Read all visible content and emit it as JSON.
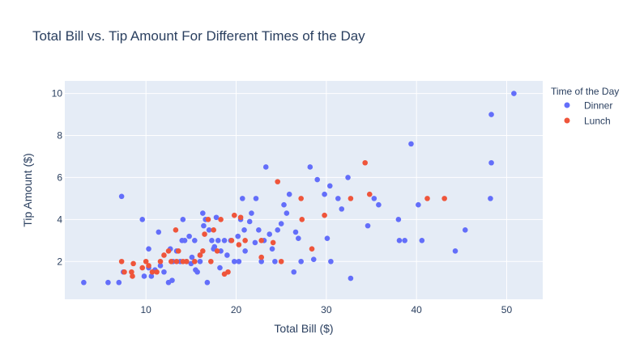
{
  "chart_data": {
    "type": "scatter",
    "title": "Total Bill vs. Tip Amount For Different Times of the Day",
    "xlabel": "Total Bill ($)",
    "ylabel": "Tip Amount ($)",
    "xlim": [
      1,
      54
    ],
    "ylim": [
      0.2,
      10.6
    ],
    "xticks": [
      10,
      20,
      30,
      40,
      50
    ],
    "yticks": [
      2,
      4,
      6,
      8,
      10
    ],
    "grid": true,
    "legend": {
      "title": "Time of the Day",
      "placement": "top-right"
    },
    "colors": {
      "Dinner": "#636efa",
      "Lunch": "#ef553b",
      "plot_bg": "#e5ecf6",
      "grid": "#ffffff"
    },
    "series": [
      {
        "name": "Dinner",
        "points": [
          [
            3.1,
            1.0
          ],
          [
            5.8,
            1.0
          ],
          [
            7.0,
            1.0
          ],
          [
            7.3,
            5.1
          ],
          [
            7.5,
            1.5
          ],
          [
            9.6,
            4.0
          ],
          [
            9.8,
            1.3
          ],
          [
            10.3,
            1.7
          ],
          [
            10.3,
            2.6
          ],
          [
            10.6,
            1.3
          ],
          [
            11.0,
            1.6
          ],
          [
            11.4,
            3.4
          ],
          [
            11.6,
            1.8
          ],
          [
            12.0,
            1.5
          ],
          [
            12.5,
            1.0
          ],
          [
            12.9,
            1.1
          ],
          [
            13.0,
            2.0
          ],
          [
            13.4,
            2.5
          ],
          [
            13.8,
            2.0
          ],
          [
            14.1,
            4.0
          ],
          [
            14.3,
            3.0
          ],
          [
            14.5,
            2.0
          ],
          [
            14.8,
            3.2
          ],
          [
            15.0,
            1.9
          ],
          [
            15.4,
            3.0
          ],
          [
            15.5,
            1.6
          ],
          [
            15.7,
            1.5
          ],
          [
            16.0,
            2.0
          ],
          [
            16.3,
            4.3
          ],
          [
            16.4,
            3.7
          ],
          [
            16.6,
            4.0
          ],
          [
            16.8,
            1.0
          ],
          [
            17.0,
            3.5
          ],
          [
            17.3,
            3.0
          ],
          [
            17.5,
            2.6
          ],
          [
            17.8,
            4.1
          ],
          [
            18.0,
            3.0
          ],
          [
            18.3,
            2.5
          ],
          [
            18.7,
            3.0
          ],
          [
            19.0,
            2.3
          ],
          [
            19.4,
            3.0
          ],
          [
            19.8,
            2.0
          ],
          [
            20.2,
            3.2
          ],
          [
            20.3,
            2.0
          ],
          [
            20.7,
            5.0
          ],
          [
            20.9,
            3.5
          ],
          [
            21.0,
            2.5
          ],
          [
            21.5,
            3.9
          ],
          [
            21.7,
            4.3
          ],
          [
            22.1,
            2.9
          ],
          [
            22.2,
            5.0
          ],
          [
            22.5,
            3.5
          ],
          [
            22.8,
            2.0
          ],
          [
            23.1,
            3.0
          ],
          [
            23.3,
            6.5
          ],
          [
            23.7,
            3.3
          ],
          [
            24.0,
            2.6
          ],
          [
            24.3,
            2.0
          ],
          [
            24.6,
            3.5
          ],
          [
            25.0,
            3.8
          ],
          [
            25.3,
            4.7
          ],
          [
            25.6,
            4.3
          ],
          [
            25.9,
            5.2
          ],
          [
            26.4,
            1.5
          ],
          [
            26.6,
            3.4
          ],
          [
            26.9,
            3.1
          ],
          [
            27.2,
            2.0
          ],
          [
            28.2,
            6.5
          ],
          [
            28.6,
            2.1
          ],
          [
            29.0,
            5.9
          ],
          [
            29.8,
            5.2
          ],
          [
            30.1,
            3.1
          ],
          [
            30.4,
            5.6
          ],
          [
            30.5,
            2.0
          ],
          [
            31.3,
            5.0
          ],
          [
            31.7,
            4.5
          ],
          [
            32.4,
            6.0
          ],
          [
            32.7,
            1.2
          ],
          [
            34.6,
            3.7
          ],
          [
            35.3,
            5.0
          ],
          [
            35.8,
            4.7
          ],
          [
            38.0,
            4.0
          ],
          [
            38.1,
            3.0
          ],
          [
            38.7,
            3.0
          ],
          [
            39.4,
            7.6
          ],
          [
            40.2,
            4.7
          ],
          [
            40.6,
            3.0
          ],
          [
            44.3,
            2.5
          ],
          [
            45.4,
            3.5
          ],
          [
            48.2,
            5.0
          ],
          [
            48.3,
            6.7
          ],
          [
            48.3,
            9.0
          ],
          [
            50.8,
            10.0
          ],
          [
            16.0,
            2.3
          ],
          [
            18.2,
            1.7
          ],
          [
            12.7,
            2.6
          ],
          [
            14.0,
            3.0
          ],
          [
            17.6,
            2.7
          ],
          [
            20.5,
            4.0
          ],
          [
            15.1,
            2.2
          ]
        ]
      },
      {
        "name": "Lunch",
        "points": [
          [
            7.3,
            2.0
          ],
          [
            7.6,
            1.5
          ],
          [
            8.4,
            1.5
          ],
          [
            8.5,
            1.3
          ],
          [
            8.6,
            1.9
          ],
          [
            9.6,
            1.7
          ],
          [
            10.0,
            2.0
          ],
          [
            10.3,
            1.8
          ],
          [
            10.7,
            1.5
          ],
          [
            11.2,
            1.5
          ],
          [
            11.6,
            2.0
          ],
          [
            12.0,
            2.3
          ],
          [
            12.5,
            2.5
          ],
          [
            12.8,
            2.0
          ],
          [
            13.3,
            3.5
          ],
          [
            13.4,
            2.0
          ],
          [
            13.6,
            2.5
          ],
          [
            14.1,
            2.0
          ],
          [
            14.5,
            2.0
          ],
          [
            15.4,
            2.0
          ],
          [
            16.0,
            2.3
          ],
          [
            16.3,
            2.5
          ],
          [
            16.5,
            3.3
          ],
          [
            16.9,
            4.0
          ],
          [
            17.2,
            2.0
          ],
          [
            17.5,
            3.5
          ],
          [
            17.9,
            2.5
          ],
          [
            18.3,
            4.0
          ],
          [
            18.7,
            1.4
          ],
          [
            19.1,
            1.5
          ],
          [
            19.5,
            3.0
          ],
          [
            19.8,
            4.2
          ],
          [
            20.3,
            2.8
          ],
          [
            20.5,
            4.1
          ],
          [
            21.0,
            3.0
          ],
          [
            22.8,
            2.2
          ],
          [
            22.8,
            3.0
          ],
          [
            24.1,
            2.9
          ],
          [
            24.6,
            5.8
          ],
          [
            25.0,
            2.0
          ],
          [
            27.2,
            5.0
          ],
          [
            27.3,
            4.0
          ],
          [
            28.4,
            2.6
          ],
          [
            29.8,
            4.2
          ],
          [
            32.7,
            5.0
          ],
          [
            34.3,
            6.7
          ],
          [
            34.8,
            5.2
          ],
          [
            41.2,
            5.0
          ],
          [
            43.1,
            5.0
          ]
        ]
      }
    ]
  }
}
